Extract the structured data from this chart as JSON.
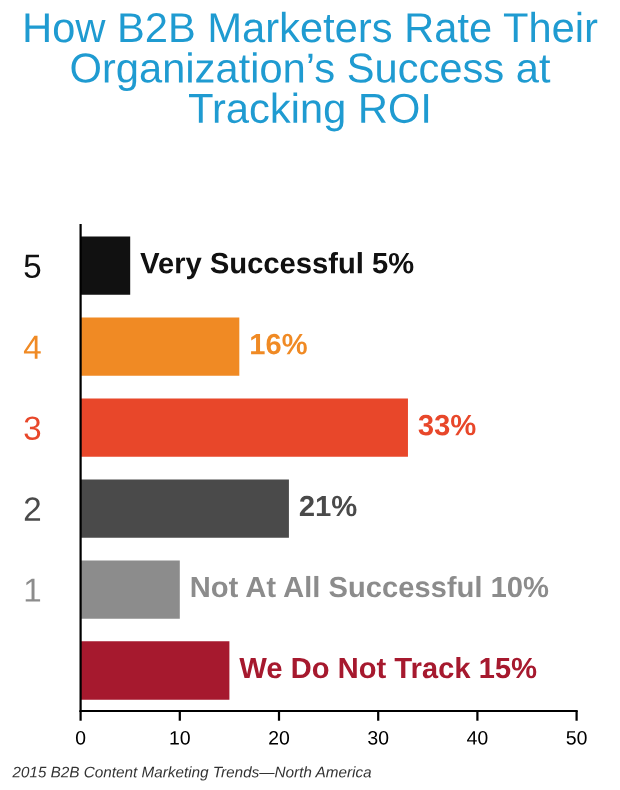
{
  "chart_data": {
    "type": "bar",
    "orientation": "horizontal",
    "title": "How B2B Marketers Rate Their Organization’s Success at Tracking ROI",
    "categories": [
      "5",
      "4",
      "3",
      "2",
      "1",
      null
    ],
    "values": [
      5,
      16,
      33,
      21,
      10,
      15
    ],
    "colors": [
      "#111111",
      "#f08a24",
      "#e8472a",
      "#4a4a4a",
      "#8c8c8c",
      "#a6192e"
    ],
    "value_labels": [
      "Very Successful 5%",
      "16%",
      "33%",
      "21%",
      "Not At All Successful 10%",
      "We Do Not Track 15%"
    ],
    "xlim": [
      0,
      50
    ],
    "xticks": [
      0,
      10,
      20,
      30,
      40,
      50
    ],
    "grid": false,
    "legend": false,
    "annotations": [
      "2015 B2B Content Marketing Trends—North America"
    ]
  }
}
